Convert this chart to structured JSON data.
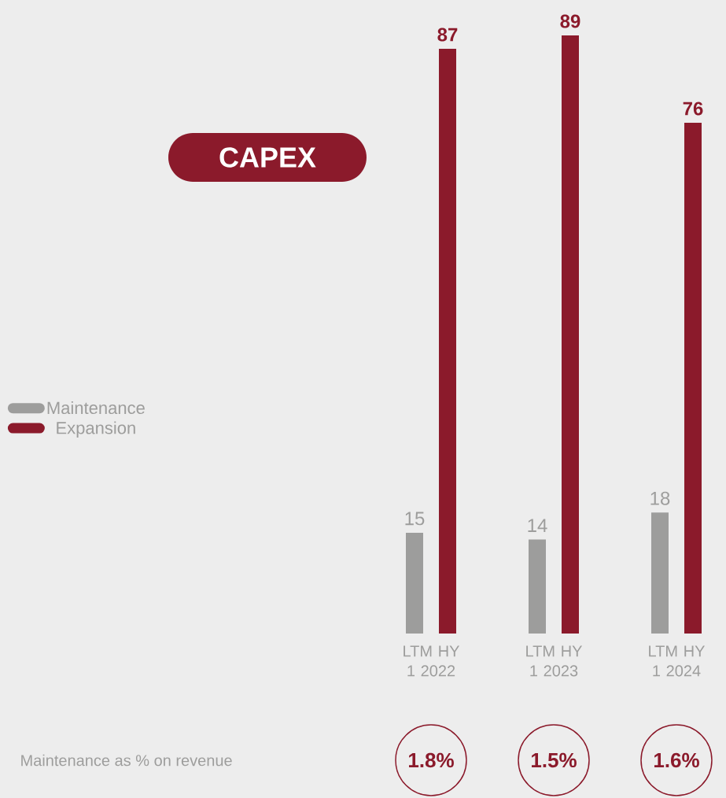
{
  "chart_data": {
    "type": "bar",
    "title": "CAPEX",
    "categories": [
      "LTM HY 1 2022",
      "LTM HY 1 2023",
      "LTM HY 1 2024"
    ],
    "series": [
      {
        "name": "Maintenance",
        "color": "#9d9d9c",
        "values": [
          15,
          14,
          18
        ]
      },
      {
        "name": "Expansion",
        "color": "#8b1a2b",
        "values": [
          87,
          89,
          76
        ]
      }
    ],
    "data_labels": true,
    "legend": "left",
    "annotations": [
      "Maintenance as % on revenue",
      "1.8%",
      "1.5%",
      "1.6%"
    ]
  }
}
